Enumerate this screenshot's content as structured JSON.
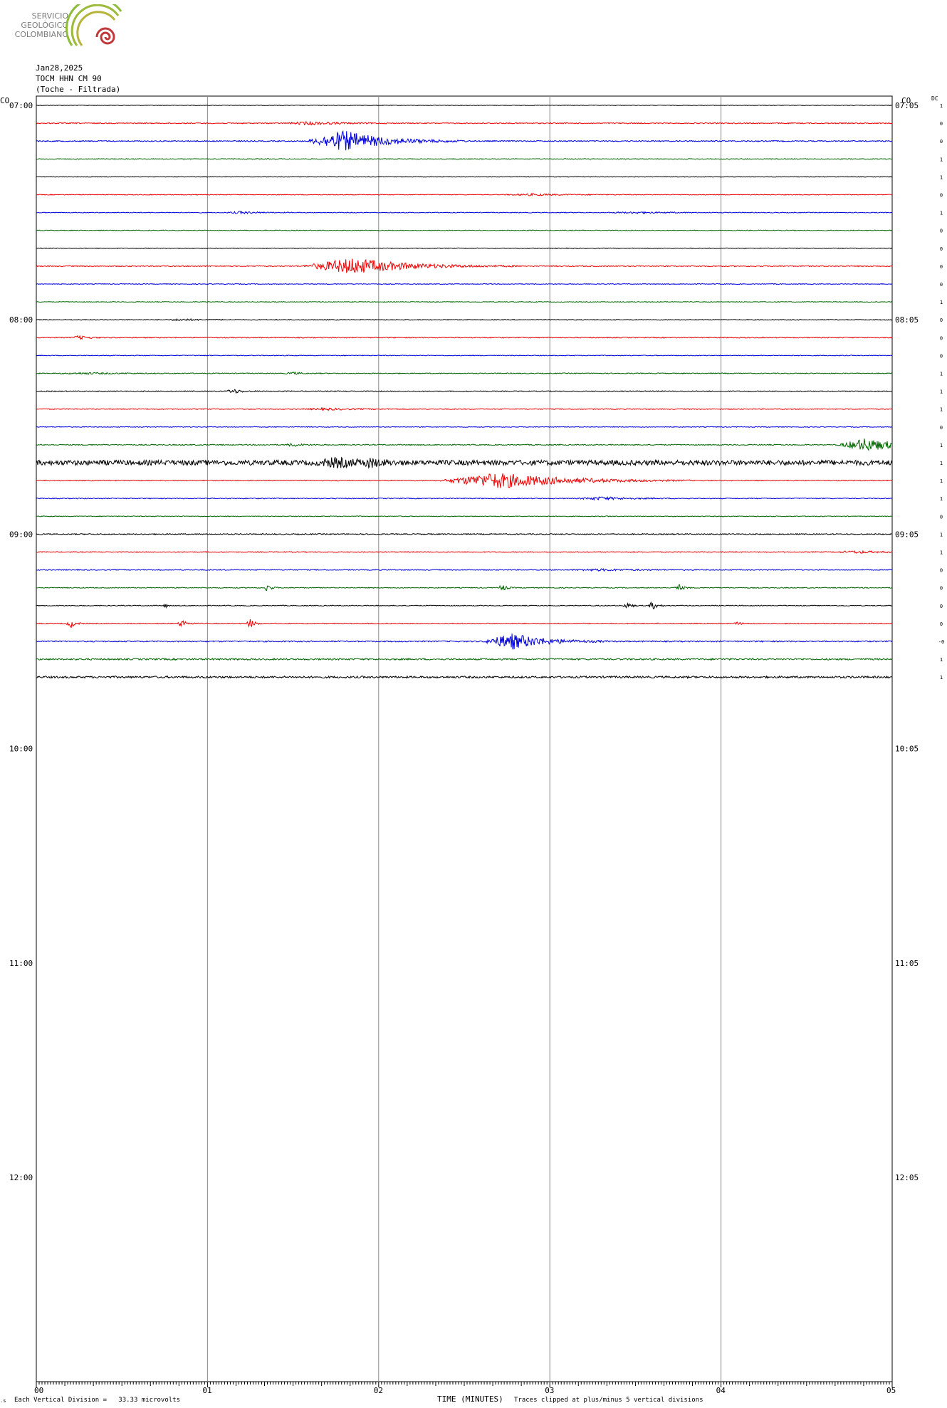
{
  "logo": {
    "lines": [
      "SERVICIO",
      "GEOLÓGICO",
      "COLOMBIANO"
    ],
    "colors": {
      "green": "#8dbb3a",
      "olive": "#b6b43a",
      "red": "#c0393b"
    }
  },
  "header": {
    "date": "Jan28,2025",
    "station": "TOCM HHN CM 90",
    "location": "(Toche - Filtrada)"
  },
  "corner_labels": {
    "left": "CO",
    "right": "CO",
    "dc": "DC"
  },
  "chart_data": {
    "type": "line",
    "title": "",
    "xlabel": "TIME (MINUTES)",
    "x_ticks": [
      "00",
      "01",
      "02",
      "03",
      "04",
      "05"
    ],
    "xlim": [
      0,
      5
    ],
    "left_hour_labels": [
      "07:00",
      "08:00",
      "09:00",
      "10:00",
      "11:00",
      "12:00"
    ],
    "right_hour_labels": [
      "07:05",
      "08:05",
      "09:05",
      "10:05",
      "11:05",
      "12:05"
    ],
    "trace_colors": [
      "#000000",
      "#ee0000",
      "#0000dd",
      "#006600"
    ],
    "rows_total": 72,
    "rows_filled": 33,
    "grid": true,
    "dc_values": [
      "1",
      "0",
      "0",
      "1",
      "1",
      "0",
      "1",
      "0",
      "0",
      "0",
      "0",
      "1",
      "0",
      "0",
      "0",
      "1",
      "1",
      "1",
      "0",
      "1",
      "1",
      "1",
      "1",
      "0",
      "1",
      "1",
      "0",
      "0",
      "0",
      "0",
      "-0",
      "1",
      "1"
    ],
    "traces": [
      {
        "base": 0.4,
        "events": []
      },
      {
        "base": 0.7,
        "events": [
          {
            "t": 1.6,
            "a": 2,
            "d": 0.3
          }
        ]
      },
      {
        "base": 0.8,
        "events": [
          {
            "t": 1.8,
            "a": 14,
            "d": 0.45
          }
        ]
      },
      {
        "base": 0.5,
        "events": []
      },
      {
        "base": 0.4,
        "events": []
      },
      {
        "base": 0.5,
        "events": [
          {
            "t": 2.9,
            "a": 1.2,
            "d": 0.4
          }
        ]
      },
      {
        "base": 0.5,
        "events": [
          {
            "t": 1.2,
            "a": 1.5,
            "d": 0.2
          },
          {
            "t": 3.5,
            "a": 1,
            "d": 0.4
          }
        ]
      },
      {
        "base": 0.5,
        "events": []
      },
      {
        "base": 0.5,
        "events": []
      },
      {
        "base": 0.7,
        "events": [
          {
            "t": 1.85,
            "a": 11,
            "d": 0.6
          }
        ]
      },
      {
        "base": 0.5,
        "events": []
      },
      {
        "base": 0.5,
        "events": []
      },
      {
        "base": 0.6,
        "events": [
          {
            "t": 0.85,
            "a": 1.2,
            "d": 0.2
          }
        ]
      },
      {
        "base": 0.6,
        "events": [
          {
            "t": 0.25,
            "a": 2.5,
            "d": 0.1
          }
        ]
      },
      {
        "base": 0.5,
        "events": []
      },
      {
        "base": 0.6,
        "events": [
          {
            "t": 0.3,
            "a": 1,
            "d": 0.4
          },
          {
            "t": 1.5,
            "a": 1.5,
            "d": 0.1
          }
        ]
      },
      {
        "base": 0.6,
        "events": [
          {
            "t": 1.15,
            "a": 3,
            "d": 0.1
          }
        ]
      },
      {
        "base": 0.6,
        "events": [
          {
            "t": 1.7,
            "a": 1.2,
            "d": 0.3
          }
        ]
      },
      {
        "base": 0.5,
        "events": []
      },
      {
        "base": 0.7,
        "events": [
          {
            "t": 1.5,
            "a": 2,
            "d": 0.1
          },
          {
            "t": 4.85,
            "a": 9,
            "d": 0.35
          }
        ]
      },
      {
        "base": 3.5,
        "events": [
          {
            "t": 1.75,
            "a": 5,
            "d": 0.25
          },
          {
            "t": 1.95,
            "a": 4,
            "d": 0.1
          }
        ]
      },
      {
        "base": 0.6,
        "events": [
          {
            "t": 2.7,
            "a": 11,
            "d": 0.7
          }
        ]
      },
      {
        "base": 0.6,
        "events": [
          {
            "t": 3.3,
            "a": 2,
            "d": 0.3
          }
        ]
      },
      {
        "base": 0.5,
        "events": []
      },
      {
        "base": 0.8,
        "events": []
      },
      {
        "base": 0.6,
        "events": [
          {
            "t": 4.8,
            "a": 1.5,
            "d": 0.3
          }
        ]
      },
      {
        "base": 0.6,
        "events": [
          {
            "t": 3.3,
            "a": 1.2,
            "d": 0.4
          }
        ]
      },
      {
        "base": 0.6,
        "events": [
          {
            "t": 1.35,
            "a": 6,
            "d": 0.04
          },
          {
            "t": 2.72,
            "a": 5,
            "d": 0.05
          },
          {
            "t": 3.75,
            "a": 5,
            "d": 0.05
          }
        ]
      },
      {
        "base": 0.6,
        "events": [
          {
            "t": 0.75,
            "a": 3,
            "d": 0.03
          },
          {
            "t": 3.45,
            "a": 4,
            "d": 0.05
          },
          {
            "t": 3.6,
            "a": 6,
            "d": 0.05
          }
        ]
      },
      {
        "base": 0.6,
        "events": [
          {
            "t": 0.2,
            "a": 6,
            "d": 0.05
          },
          {
            "t": 0.85,
            "a": 6,
            "d": 0.05
          },
          {
            "t": 1.25,
            "a": 6,
            "d": 0.05
          },
          {
            "t": 4.1,
            "a": 2,
            "d": 0.05
          }
        ]
      },
      {
        "base": 0.9,
        "events": [
          {
            "t": 2.78,
            "a": 11,
            "d": 0.35
          }
        ]
      },
      {
        "base": 1.1,
        "events": []
      },
      {
        "base": 1.4,
        "events": []
      }
    ]
  }
}
